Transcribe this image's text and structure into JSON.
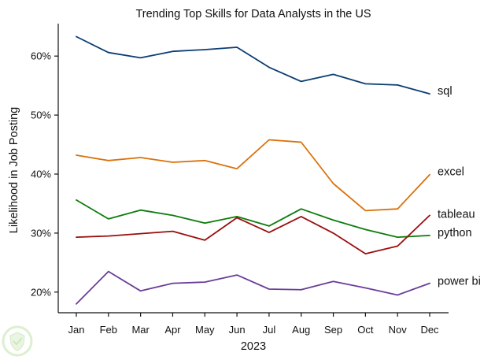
{
  "chart_data": {
    "type": "line",
    "title": "Trending Top Skills for Data Analysts in the US",
    "xlabel": "2023",
    "ylabel": "Likelihood in Job Posting",
    "categories": [
      "Jan",
      "Feb",
      "Mar",
      "Apr",
      "May",
      "Jun",
      "Jul",
      "Aug",
      "Sep",
      "Oct",
      "Nov",
      "Dec"
    ],
    "ylim": [
      16.5,
      65.5
    ],
    "yticks": [
      20,
      30,
      40,
      50,
      60
    ],
    "ytick_labels": [
      "20%",
      "30%",
      "40%",
      "50%",
      "60%"
    ],
    "grid": false,
    "legend": "direct labels at line ends",
    "series": [
      {
        "name": "sql",
        "color": "#0b3d73",
        "values": [
          63.3,
          60.6,
          59.7,
          60.8,
          61.1,
          61.5,
          58.1,
          55.7,
          56.9,
          55.3,
          55.1,
          53.6
        ]
      },
      {
        "name": "excel",
        "color": "#d9720b",
        "values": [
          43.2,
          42.3,
          42.8,
          42.0,
          42.3,
          40.9,
          45.8,
          45.4,
          38.4,
          33.8,
          34.1,
          39.9
        ]
      },
      {
        "name": "python",
        "color": "#0c7d0c",
        "values": [
          35.6,
          32.4,
          33.9,
          33.0,
          31.7,
          32.8,
          31.2,
          34.1,
          32.2,
          30.6,
          29.3,
          29.6
        ]
      },
      {
        "name": "tableau",
        "color": "#9b0e0e",
        "values": [
          29.3,
          29.5,
          29.9,
          30.3,
          28.8,
          32.6,
          30.1,
          32.8,
          30.0,
          26.5,
          27.8,
          33.0
        ]
      },
      {
        "name": "power bi",
        "color": "#6a3d9a",
        "values": [
          18.0,
          23.5,
          20.2,
          21.5,
          21.7,
          22.9,
          20.5,
          20.4,
          21.8,
          20.7,
          19.5,
          21.5
        ]
      }
    ]
  }
}
